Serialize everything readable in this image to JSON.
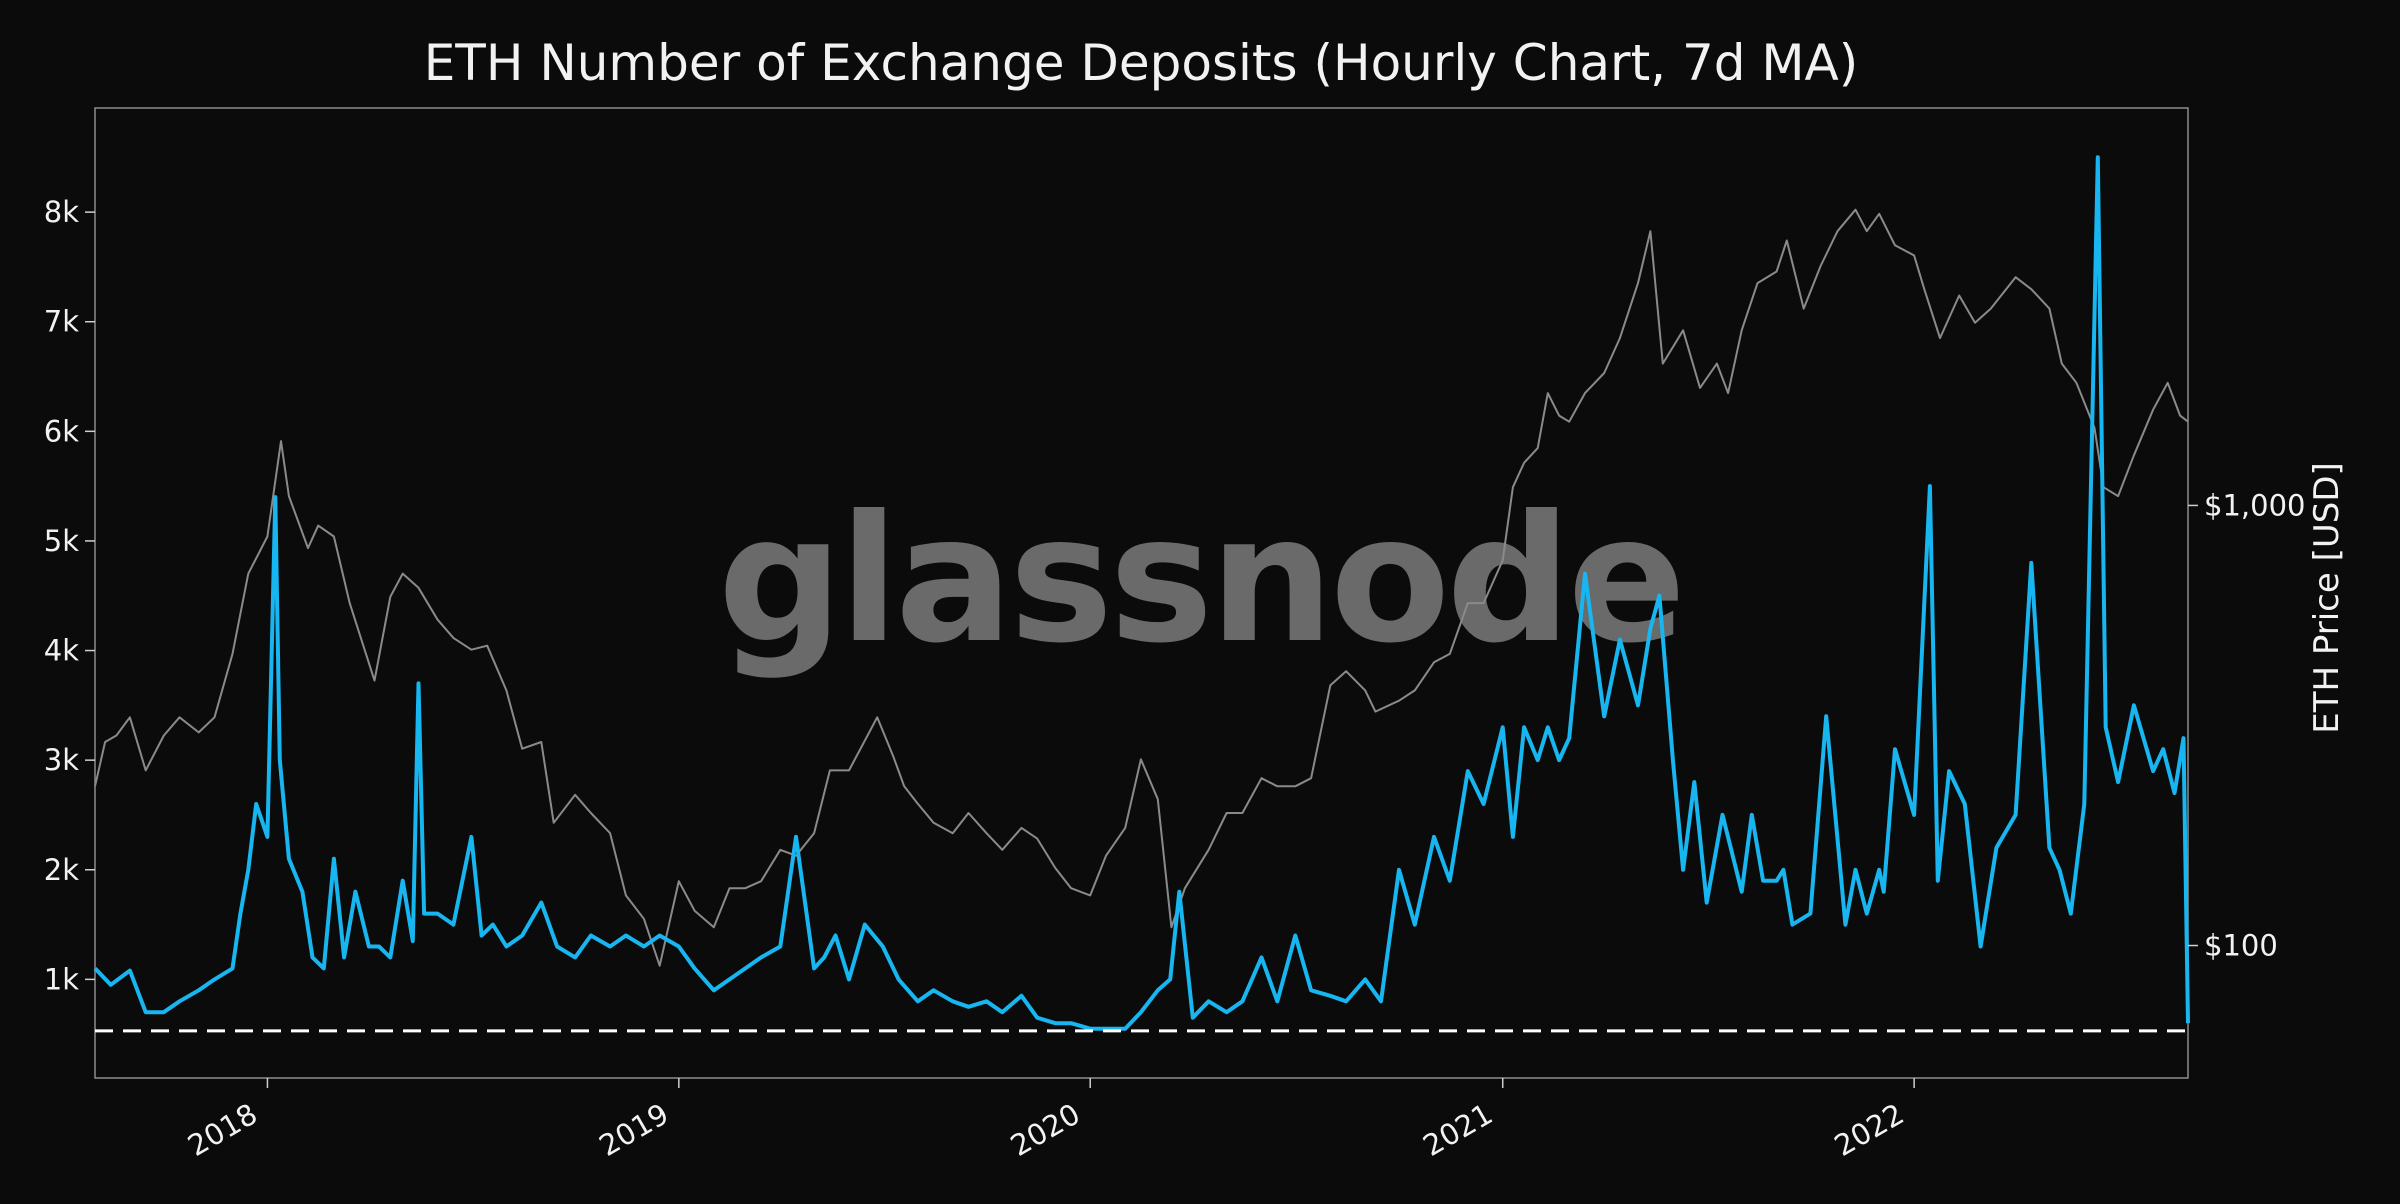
{
  "chart_data": {
    "type": "line",
    "title": "ETH Number of Exchange Deposits (Hourly Chart, 7d MA)",
    "watermark": "glassnode",
    "x_ticks": [
      "2018",
      "2019",
      "2020",
      "2021",
      "2022"
    ],
    "x_range": [
      "2017-08-01",
      "2022-09-01"
    ],
    "y_left": {
      "label": "",
      "ticks": [
        "1k",
        "2k",
        "3k",
        "4k",
        "5k",
        "6k",
        "7k",
        "8k"
      ],
      "tick_values": [
        1000,
        2000,
        3000,
        4000,
        5000,
        6000,
        7000,
        8000
      ],
      "range": [
        100,
        8950
      ]
    },
    "y_right": {
      "label": "ETH Price [USD]",
      "scale": "log",
      "ticks": [
        "$100",
        "$1,000"
      ],
      "tick_values": [
        100,
        1000
      ],
      "range": [
        50,
        8000
      ]
    },
    "reference_line": {
      "style": "dashed",
      "color": "#ffffff",
      "value": 530
    },
    "grid": false,
    "series": [
      {
        "color": "#18b6f0",
        "axis": "left",
        "x": [
          "2017-08-01",
          "2017-08-15",
          "2017-09-01",
          "2017-09-15",
          "2017-10-01",
          "2017-10-15",
          "2017-11-01",
          "2017-11-15",
          "2017-12-01",
          "2017-12-08",
          "2017-12-15",
          "2017-12-22",
          "2018-01-01",
          "2018-01-08",
          "2018-01-12",
          "2018-01-20",
          "2018-02-01",
          "2018-02-10",
          "2018-02-20",
          "2018-03-01",
          "2018-03-10",
          "2018-03-20",
          "2018-04-01",
          "2018-04-10",
          "2018-04-20",
          "2018-05-01",
          "2018-05-10",
          "2018-05-15",
          "2018-05-20",
          "2018-06-01",
          "2018-06-15",
          "2018-07-01",
          "2018-07-10",
          "2018-07-20",
          "2018-08-01",
          "2018-08-15",
          "2018-09-01",
          "2018-09-15",
          "2018-10-01",
          "2018-10-15",
          "2018-11-01",
          "2018-11-15",
          "2018-12-01",
          "2018-12-15",
          "2019-01-01",
          "2019-01-15",
          "2019-02-01",
          "2019-02-15",
          "2019-03-01",
          "2019-03-15",
          "2019-04-01",
          "2019-04-15",
          "2019-05-01",
          "2019-05-10",
          "2019-05-20",
          "2019-06-01",
          "2019-06-15",
          "2019-07-01",
          "2019-07-15",
          "2019-08-01",
          "2019-08-15",
          "2019-09-01",
          "2019-09-15",
          "2019-10-01",
          "2019-10-15",
          "2019-11-01",
          "2019-11-15",
          "2019-12-01",
          "2019-12-15",
          "2020-01-01",
          "2020-01-15",
          "2020-02-01",
          "2020-02-15",
          "2020-03-01",
          "2020-03-12",
          "2020-03-20",
          "2020-04-01",
          "2020-04-15",
          "2020-05-01",
          "2020-05-15",
          "2020-06-01",
          "2020-06-15",
          "2020-07-01",
          "2020-07-15",
          "2020-08-01",
          "2020-08-15",
          "2020-09-01",
          "2020-09-15",
          "2020-10-01",
          "2020-10-15",
          "2020-11-01",
          "2020-11-15",
          "2020-12-01",
          "2020-12-15",
          "2021-01-01",
          "2021-01-10",
          "2021-01-20",
          "2021-02-01",
          "2021-02-10",
          "2021-02-20",
          "2021-03-01",
          "2021-03-15",
          "2021-04-01",
          "2021-04-15",
          "2021-05-01",
          "2021-05-12",
          "2021-05-20",
          "2021-06-01",
          "2021-06-10",
          "2021-06-20",
          "2021-07-01",
          "2021-07-15",
          "2021-08-01",
          "2021-08-10",
          "2021-08-20",
          "2021-09-01",
          "2021-09-07",
          "2021-09-15",
          "2021-10-01",
          "2021-10-15",
          "2021-11-01",
          "2021-11-10",
          "2021-11-20",
          "2021-12-01",
          "2021-12-05",
          "2021-12-15",
          "2022-01-01",
          "2022-01-15",
          "2022-01-22",
          "2022-02-01",
          "2022-02-15",
          "2022-03-01",
          "2022-03-15",
          "2022-04-01",
          "2022-04-15",
          "2022-05-01",
          "2022-05-10",
          "2022-05-20",
          "2022-06-01",
          "2022-06-13",
          "2022-06-20",
          "2022-07-01",
          "2022-07-15",
          "2022-08-01",
          "2022-08-10",
          "2022-08-20",
          "2022-08-28",
          "2022-09-01"
        ],
        "values": [
          1100,
          950,
          1080,
          700,
          700,
          800,
          900,
          1000,
          1100,
          1600,
          2000,
          2600,
          2300,
          5400,
          3000,
          2100,
          1800,
          1200,
          1100,
          2100,
          1200,
          1800,
          1300,
          1300,
          1200,
          1900,
          1350,
          3700,
          1600,
          1600,
          1500,
          2300,
          1400,
          1500,
          1300,
          1400,
          1700,
          1300,
          1200,
          1400,
          1300,
          1400,
          1300,
          1400,
          1300,
          1100,
          900,
          1000,
          1100,
          1200,
          1300,
          2300,
          1100,
          1200,
          1400,
          1000,
          1500,
          1300,
          1000,
          800,
          900,
          800,
          750,
          800,
          700,
          850,
          650,
          600,
          600,
          550,
          550,
          550,
          700,
          900,
          1000,
          1800,
          650,
          800,
          700,
          800,
          1200,
          800,
          1400,
          900,
          850,
          800,
          1000,
          800,
          2000,
          1500,
          2300,
          1900,
          2900,
          2600,
          3300,
          2300,
          3300,
          3000,
          3300,
          3000,
          3200,
          4700,
          3400,
          4100,
          3500,
          4200,
          4500,
          3000,
          2000,
          2800,
          1700,
          2500,
          1800,
          2500,
          1900,
          1900,
          2000,
          1500,
          1600,
          3400,
          1500,
          2000,
          1600,
          2000,
          1800,
          3100,
          2500,
          5500,
          1900,
          2900,
          2600,
          1300,
          2200,
          2500,
          4800,
          2200,
          2000,
          1600,
          2600,
          8500,
          3300,
          2800,
          3500,
          2900,
          3100,
          2700,
          3200,
          600
        ]
      },
      {
        "color": "#8a8a8a",
        "axis": "right",
        "x": [
          "2017-08-01",
          "2017-08-10",
          "2017-08-20",
          "2017-09-01",
          "2017-09-15",
          "2017-10-01",
          "2017-10-15",
          "2017-11-01",
          "2017-11-15",
          "2017-12-01",
          "2017-12-15",
          "2018-01-01",
          "2018-01-13",
          "2018-01-20",
          "2018-02-06",
          "2018-02-15",
          "2018-03-01",
          "2018-03-15",
          "2018-04-06",
          "2018-04-20",
          "2018-05-01",
          "2018-05-15",
          "2018-06-01",
          "2018-06-15",
          "2018-07-01",
          "2018-07-15",
          "2018-08-01",
          "2018-08-15",
          "2018-09-01",
          "2018-09-12",
          "2018-10-01",
          "2018-10-15",
          "2018-11-01",
          "2018-11-15",
          "2018-12-01",
          "2018-12-15",
          "2019-01-01",
          "2019-01-15",
          "2019-02-01",
          "2019-02-15",
          "2019-03-01",
          "2019-03-15",
          "2019-04-01",
          "2019-04-15",
          "2019-05-01",
          "2019-05-15",
          "2019-06-01",
          "2019-06-26",
          "2019-07-10",
          "2019-07-20",
          "2019-08-01",
          "2019-08-15",
          "2019-09-01",
          "2019-09-15",
          "2019-10-01",
          "2019-10-15",
          "2019-11-01",
          "2019-11-15",
          "2019-12-01",
          "2019-12-15",
          "2020-01-01",
          "2020-01-15",
          "2020-02-01",
          "2020-02-15",
          "2020-03-01",
          "2020-03-13",
          "2020-03-25",
          "2020-04-15",
          "2020-05-01",
          "2020-05-15",
          "2020-06-01",
          "2020-06-15",
          "2020-07-01",
          "2020-07-15",
          "2020-08-01",
          "2020-08-15",
          "2020-09-01",
          "2020-09-10",
          "2020-10-01",
          "2020-10-15",
          "2020-11-01",
          "2020-11-15",
          "2020-12-01",
          "2020-12-15",
          "2021-01-01",
          "2021-01-10",
          "2021-01-20",
          "2021-02-01",
          "2021-02-10",
          "2021-02-20",
          "2021-03-01",
          "2021-03-15",
          "2021-04-01",
          "2021-04-15",
          "2021-05-01",
          "2021-05-12",
          "2021-05-23",
          "2021-06-10",
          "2021-06-25",
          "2021-07-10",
          "2021-07-20",
          "2021-08-01",
          "2021-08-15",
          "2021-09-01",
          "2021-09-10",
          "2021-09-25",
          "2021-10-10",
          "2021-10-25",
          "2021-11-10",
          "2021-11-20",
          "2021-12-01",
          "2021-12-15",
          "2022-01-01",
          "2022-01-10",
          "2022-01-24",
          "2022-02-10",
          "2022-02-24",
          "2022-03-10",
          "2022-04-01",
          "2022-04-15",
          "2022-05-01",
          "2022-05-12",
          "2022-05-25",
          "2022-06-10",
          "2022-06-18",
          "2022-07-01",
          "2022-07-15",
          "2022-08-01",
          "2022-08-14",
          "2022-08-25",
          "2022-09-01"
        ],
        "values": [
          230,
          290,
          300,
          330,
          250,
          300,
          330,
          305,
          330,
          460,
          700,
          850,
          1400,
          1050,
          800,
          900,
          850,
          600,
          400,
          620,
          700,
          650,
          550,
          500,
          470,
          480,
          380,
          280,
          290,
          190,
          220,
          200,
          180,
          130,
          115,
          90,
          140,
          120,
          110,
          135,
          135,
          140,
          165,
          160,
          180,
          250,
          250,
          330,
          270,
          230,
          210,
          190,
          180,
          200,
          180,
          165,
          185,
          175,
          150,
          135,
          130,
          160,
          185,
          265,
          215,
          110,
          135,
          165,
          200,
          200,
          240,
          230,
          230,
          240,
          390,
          420,
          380,
          340,
          360,
          380,
          440,
          460,
          600,
          600,
          750,
          1100,
          1250,
          1350,
          1800,
          1600,
          1550,
          1800,
          2000,
          2400,
          3200,
          4200,
          2100,
          2500,
          1850,
          2100,
          1800,
          2500,
          3200,
          3400,
          4000,
          2800,
          3500,
          4200,
          4700,
          4200,
          4600,
          3900,
          3700,
          3100,
          2400,
          3000,
          2600,
          2800,
          3300,
          3100,
          2800,
          2100,
          1900,
          1500,
          1100,
          1050,
          1300,
          1650,
          1900,
          1600,
          1550
        ]
      }
    ]
  }
}
